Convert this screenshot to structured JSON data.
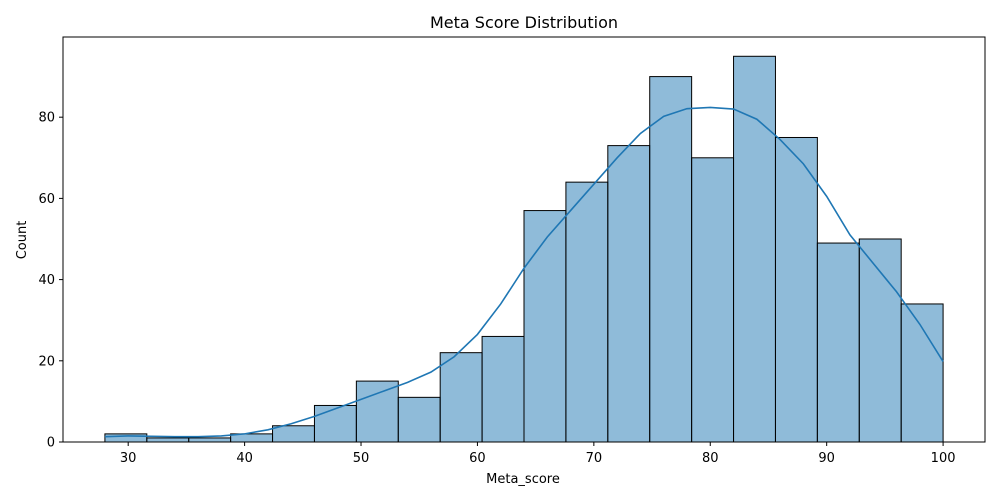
{
  "chart_data": {
    "type": "bar",
    "title": "Meta Score Distribution",
    "xlabel": "Meta_score",
    "ylabel": "Count",
    "bin_start": 28,
    "bin_width": 3.6,
    "values": [
      2,
      1,
      1,
      2,
      4,
      9,
      15,
      11,
      22,
      26,
      57,
      64,
      73,
      90,
      70,
      95,
      75,
      49,
      50,
      34
    ],
    "xlim": [
      24.4,
      103.6
    ],
    "ylim": [
      0,
      99.75
    ],
    "xticks": [
      30,
      40,
      50,
      60,
      70,
      80,
      90,
      100
    ],
    "yticks": [
      0,
      20,
      40,
      60,
      80
    ],
    "kde": {
      "x": [
        28,
        30,
        32,
        34,
        36,
        38,
        40,
        42,
        44,
        46,
        48,
        50,
        52,
        54,
        56,
        58,
        60,
        62,
        64,
        66,
        68,
        70,
        72,
        74,
        76,
        78,
        80,
        82,
        84,
        86,
        88,
        90,
        92,
        94,
        96,
        98,
        100
      ],
      "y": [
        1.3,
        1.5,
        1.4,
        1.3,
        1.3,
        1.5,
        2.0,
        3.0,
        4.5,
        6.3,
        8.4,
        10.5,
        12.6,
        14.7,
        17.2,
        21.0,
        26.5,
        34.0,
        42.8,
        50.5,
        57.0,
        63.5,
        70.0,
        76.0,
        80.2,
        82.1,
        82.4,
        82.0,
        79.5,
        74.5,
        68.5,
        60.5,
        51.0,
        44.0,
        37.0,
        29.0,
        19.8
      ]
    },
    "colors": {
      "bar": "#1f77b4",
      "line": "#1f77b4"
    },
    "grid": false
  }
}
